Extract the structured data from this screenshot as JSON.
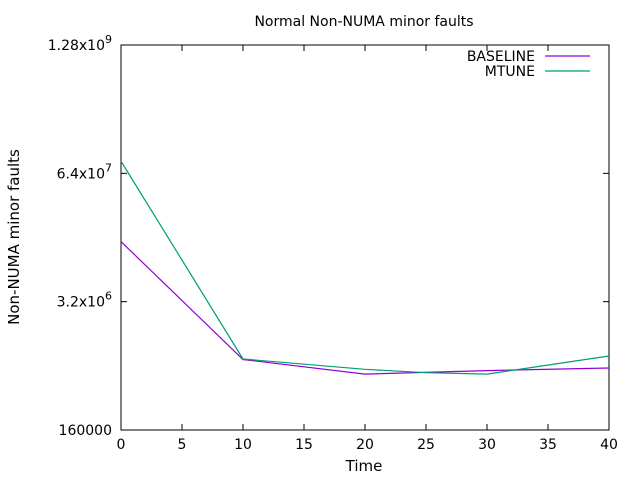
{
  "chart_data": {
    "type": "line",
    "title": "Normal Non-NUMA minor faults",
    "xlabel": "Time",
    "ylabel": "Non-NUMA minor faults",
    "xlim": [
      0,
      40
    ],
    "x_ticks": [
      "0",
      "5",
      "10",
      "15",
      "20",
      "25",
      "30",
      "35",
      "40"
    ],
    "y_scale": "log",
    "ylim": [
      160000,
      1280000000
    ],
    "y_ticks": [
      {
        "value": 160000,
        "label": "160000",
        "base": "",
        "exp": ""
      },
      {
        "value": 3200000,
        "label": "",
        "base": "3.2x10",
        "exp": "6"
      },
      {
        "value": 64000000,
        "label": "",
        "base": "6.4x10",
        "exp": "7"
      },
      {
        "value": 1280000000,
        "label": "",
        "base": "1.28x10",
        "exp": "9"
      }
    ],
    "legend_position": "top-right",
    "grid": false,
    "series": [
      {
        "name": "BASELINE",
        "color": "#9400d3",
        "x": [
          0,
          10,
          20,
          30,
          40
        ],
        "y": [
          13000000,
          830000,
          590000,
          640000,
          680000
        ]
      },
      {
        "name": "MTUNE",
        "color": "#009e73",
        "x": [
          0,
          10,
          20,
          25,
          30,
          40
        ],
        "y": [
          85000000,
          840000,
          660000,
          610000,
          590000,
          900000
        ]
      }
    ]
  }
}
